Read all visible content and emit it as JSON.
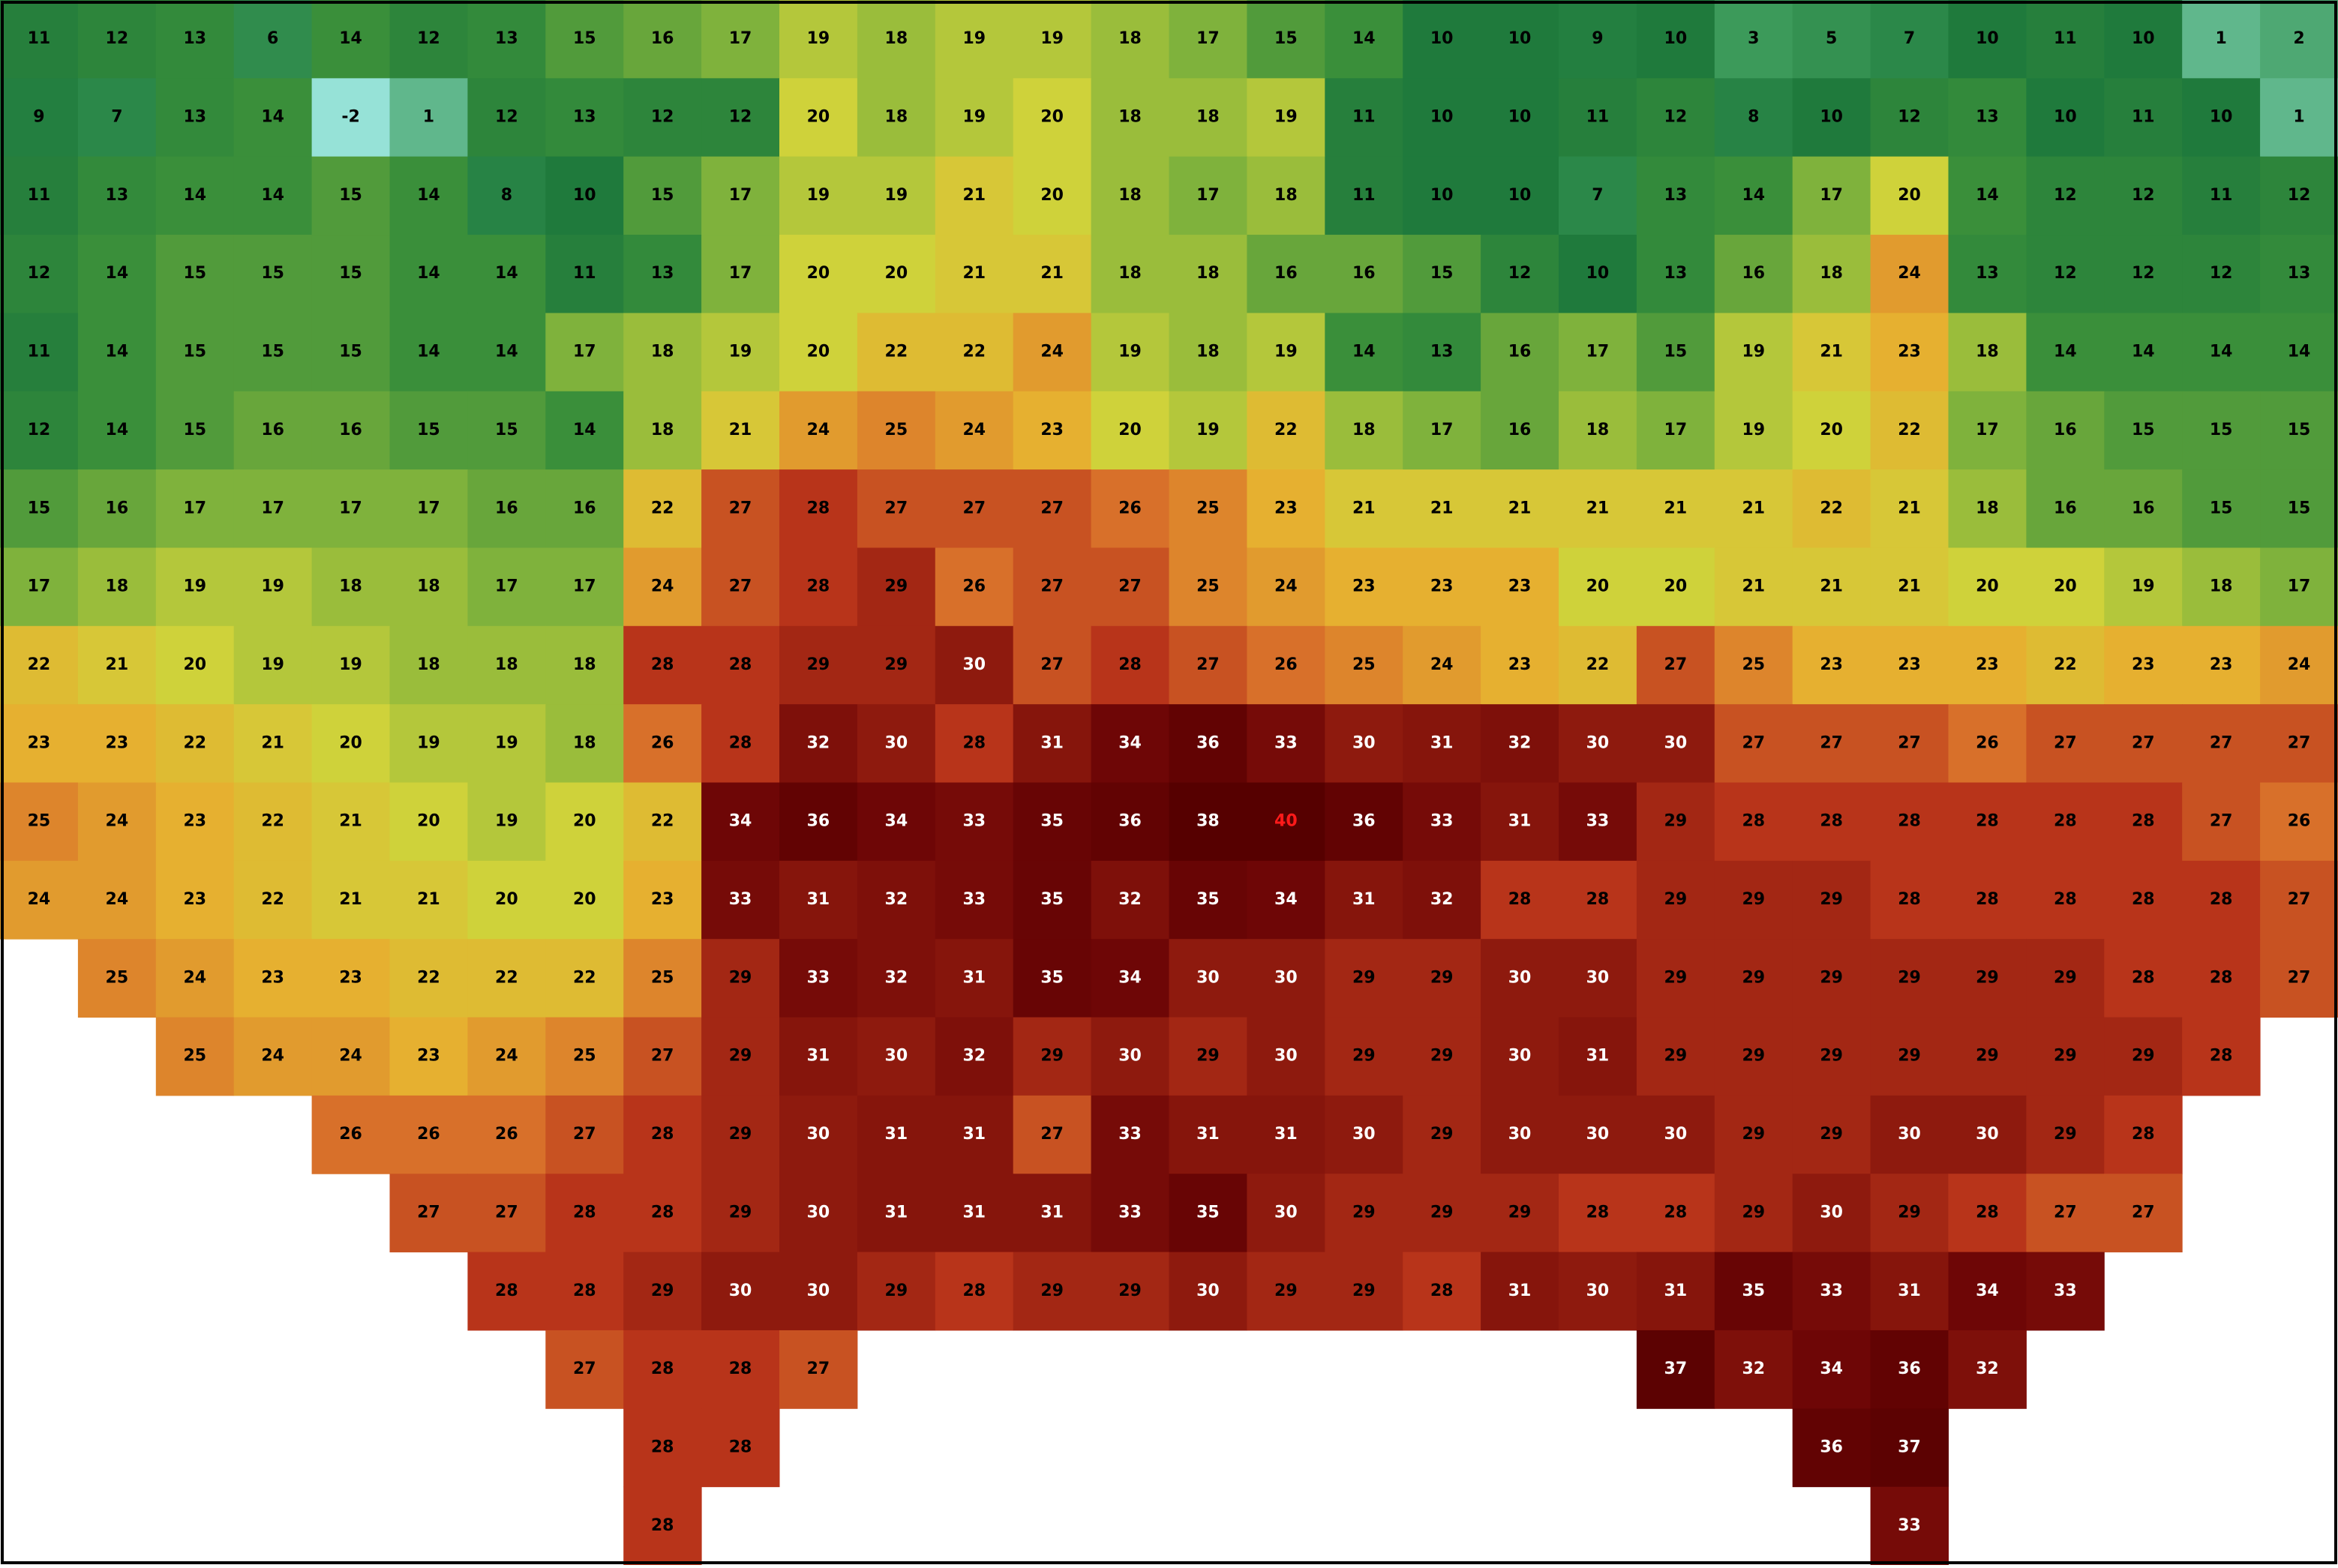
{
  "grid": {
    "colormap": [
      [
        -3,
        "#a8f0f0"
      ],
      [
        3,
        "#3c9a5a"
      ],
      [
        10,
        "#1f7a3c"
      ],
      [
        14,
        "#3a8f3a"
      ],
      [
        17,
        "#7fb23c"
      ],
      [
        20,
        "#cfd23a"
      ],
      [
        23,
        "#e6b030"
      ],
      [
        26,
        "#d8702a"
      ],
      [
        28,
        "#b8341a"
      ],
      [
        30,
        "#8e1a0e"
      ],
      [
        34,
        "#6e0606"
      ],
      [
        38,
        "#560000"
      ]
    ],
    "rows": [
      [
        11,
        12,
        13,
        6,
        14,
        12,
        13,
        15,
        16,
        17,
        19,
        18,
        19,
        19,
        18,
        17,
        15,
        14,
        10,
        10,
        9,
        10,
        3,
        5,
        7,
        10,
        11,
        10,
        1,
        2
      ],
      [
        9,
        7,
        13,
        14,
        -2,
        1,
        12,
        13,
        12,
        12,
        20,
        18,
        19,
        20,
        18,
        18,
        19,
        11,
        10,
        10,
        11,
        12,
        8,
        10,
        12,
        13,
        10,
        11,
        10,
        1
      ],
      [
        11,
        13,
        14,
        14,
        15,
        14,
        8,
        10,
        15,
        17,
        19,
        19,
        21,
        20,
        18,
        17,
        18,
        11,
        10,
        10,
        7,
        13,
        14,
        17,
        20,
        14,
        12,
        12,
        11,
        12
      ],
      [
        12,
        14,
        15,
        15,
        15,
        14,
        14,
        11,
        13,
        17,
        20,
        20,
        21,
        21,
        18,
        18,
        16,
        16,
        15,
        12,
        10,
        13,
        16,
        18,
        24,
        13,
        12,
        12,
        12,
        13
      ],
      [
        11,
        14,
        15,
        15,
        15,
        14,
        14,
        17,
        18,
        19,
        20,
        22,
        22,
        24,
        19,
        18,
        19,
        14,
        13,
        16,
        17,
        15,
        19,
        21,
        23,
        18,
        14,
        14,
        14,
        14
      ],
      [
        12,
        14,
        15,
        16,
        16,
        15,
        15,
        14,
        18,
        21,
        24,
        25,
        24,
        23,
        20,
        19,
        22,
        18,
        17,
        16,
        18,
        17,
        19,
        20,
        22,
        17,
        16,
        15,
        15,
        15
      ],
      [
        15,
        16,
        17,
        17,
        17,
        17,
        16,
        16,
        22,
        27,
        28,
        27,
        27,
        27,
        26,
        25,
        23,
        21,
        21,
        21,
        21,
        21,
        21,
        22,
        21,
        18,
        16,
        16,
        15,
        15
      ],
      [
        17,
        18,
        19,
        19,
        18,
        18,
        17,
        17,
        24,
        27,
        28,
        29,
        26,
        27,
        27,
        25,
        24,
        23,
        23,
        23,
        20,
        20,
        21,
        21,
        21,
        20,
        20,
        19,
        18,
        17
      ],
      [
        22,
        21,
        20,
        19,
        19,
        18,
        18,
        18,
        28,
        28,
        29,
        29,
        30,
        27,
        28,
        27,
        26,
        25,
        24,
        23,
        22,
        27,
        25,
        23,
        23,
        23,
        22,
        23,
        23,
        24
      ],
      [
        23,
        23,
        22,
        21,
        20,
        19,
        19,
        18,
        26,
        28,
        32,
        30,
        28,
        31,
        34,
        36,
        33,
        30,
        31,
        32,
        30,
        30,
        27,
        27,
        27,
        26,
        27,
        27,
        27,
        27
      ],
      [
        25,
        24,
        23,
        22,
        21,
        20,
        19,
        20,
        22,
        34,
        36,
        34,
        33,
        35,
        36,
        38,
        40,
        36,
        33,
        31,
        33,
        29,
        28,
        28,
        28,
        28,
        28,
        28,
        27,
        26
      ],
      [
        24,
        24,
        23,
        22,
        21,
        21,
        20,
        20,
        23,
        33,
        31,
        32,
        33,
        35,
        32,
        35,
        34,
        31,
        32,
        28,
        28,
        29,
        29,
        29,
        28,
        28,
        28,
        28,
        28,
        27
      ],
      [
        null,
        25,
        24,
        23,
        23,
        22,
        22,
        22,
        25,
        29,
        33,
        32,
        31,
        35,
        34,
        30,
        30,
        29,
        29,
        30,
        30,
        29,
        29,
        29,
        29,
        29,
        29,
        28,
        28,
        27
      ],
      [
        null,
        null,
        25,
        24,
        24,
        23,
        24,
        25,
        27,
        29,
        31,
        30,
        32,
        29,
        30,
        29,
        30,
        29,
        29,
        30,
        31,
        29,
        29,
        29,
        29,
        29,
        29,
        29,
        28,
        null
      ],
      [
        null,
        null,
        null,
        null,
        26,
        26,
        26,
        27,
        28,
        29,
        30,
        31,
        31,
        27,
        33,
        31,
        31,
        30,
        29,
        30,
        30,
        30,
        29,
        29,
        30,
        30,
        29,
        28,
        null,
        null
      ],
      [
        null,
        null,
        null,
        null,
        null,
        27,
        27,
        28,
        28,
        29,
        30,
        31,
        31,
        31,
        33,
        35,
        30,
        29,
        29,
        29,
        28,
        28,
        29,
        30,
        29,
        28,
        27,
        27,
        null,
        null
      ],
      [
        null,
        null,
        null,
        null,
        null,
        null,
        28,
        28,
        29,
        30,
        30,
        29,
        28,
        29,
        29,
        30,
        29,
        29,
        28,
        31,
        30,
        31,
        35,
        33,
        31,
        34,
        33,
        null,
        null,
        null
      ],
      [
        null,
        null,
        null,
        null,
        null,
        null,
        null,
        27,
        28,
        28,
        27,
        null,
        null,
        null,
        null,
        null,
        null,
        null,
        null,
        null,
        null,
        37,
        32,
        34,
        36,
        32,
        null,
        null,
        null,
        null
      ],
      [
        null,
        null,
        null,
        null,
        null,
        null,
        null,
        null,
        28,
        28,
        null,
        null,
        null,
        null,
        null,
        null,
        null,
        null,
        null,
        null,
        null,
        null,
        null,
        36,
        37,
        null,
        null,
        null,
        null,
        null
      ],
      [
        null,
        null,
        null,
        null,
        null,
        null,
        null,
        null,
        28,
        null,
        null,
        null,
        null,
        null,
        null,
        null,
        null,
        null,
        null,
        null,
        null,
        null,
        null,
        null,
        33,
        null,
        null,
        null,
        null,
        null
      ]
    ],
    "light_label_from": 30
  }
}
